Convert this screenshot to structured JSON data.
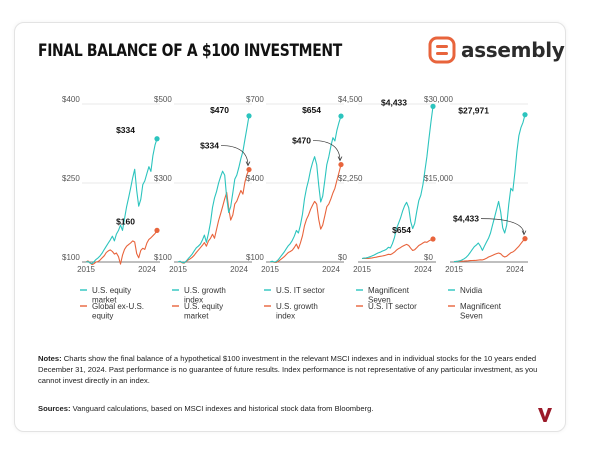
{
  "title": "FINAL BALANCE OF A $100 INVESTMENT",
  "brand": {
    "name": "assembly",
    "accent": "#E8643C",
    "teal": "#2CC4BE",
    "orange": "#E8643C"
  },
  "notes": {
    "label": "Notes:",
    "text": " Charts show the final balance of a hypothetical $100 investment in the relevant MSCI indexes and in individual stocks for the 10 years ended December 31, 2024. Past performance is no guarantee of future results. Index performance is not representative of any particular investment, as you cannot invest directly in an index."
  },
  "sources": {
    "label": "Sources:",
    "text": " Vanguard calculations, based on MSCI indexes and historical stock data from Bloomberg."
  },
  "chart_data": [
    {
      "type": "line",
      "x_start_label": "2015",
      "x_end_label": "2024",
      "ylim": [
        100,
        400
      ],
      "yticks": [
        {
          "v": 400,
          "label": "$400"
        },
        {
          "v": 250,
          "label": "$250"
        },
        {
          "v": 100,
          "label": "$100"
        }
      ],
      "series": [
        {
          "name": "U.S. equity market",
          "color": "#2CC4BE",
          "final": 334,
          "final_label": "$334",
          "values": [
            100,
            101,
            98,
            97,
            101,
            105,
            108,
            112,
            117,
            124,
            130,
            136,
            142,
            149,
            140,
            153,
            160,
            170,
            160,
            182,
            205,
            222,
            240,
            260,
            276,
            236,
            206,
            219,
            247,
            254,
            268,
            281,
            272,
            302,
            322,
            334
          ]
        },
        {
          "name": "Global ex-U.S. equity",
          "color": "#E8643C",
          "final": 160,
          "final_label": "$160",
          "values": [
            100,
            102,
            98,
            95,
            97,
            100,
            101,
            104,
            108,
            112,
            118,
            121,
            123,
            120,
            115,
            117,
            110,
            96,
            113,
            124,
            130,
            133,
            136,
            140,
            138,
            116,
            108,
            122,
            126,
            124,
            136,
            143,
            146,
            150,
            154,
            160
          ]
        }
      ]
    },
    {
      "type": "line",
      "x_start_label": "2015",
      "x_end_label": "2024",
      "ylim": [
        100,
        500
      ],
      "yticks": [
        {
          "v": 500,
          "label": "$500"
        },
        {
          "v": 300,
          "label": "$300"
        },
        {
          "v": 100,
          "label": "$100"
        }
      ],
      "series": [
        {
          "name": "U.S. growth index",
          "color": "#2CC4BE",
          "final": 470,
          "final_label": "$470",
          "values": [
            100,
            102,
            99,
            98,
            102,
            108,
            114,
            120,
            128,
            136,
            140,
            145,
            155,
            168,
            150,
            172,
            200,
            238,
            262,
            278,
            300,
            316,
            330,
            320,
            262,
            225,
            240,
            275,
            310,
            320,
            340,
            362,
            380,
            410,
            440,
            470
          ]
        },
        {
          "name": "U.S. equity market",
          "color": "#E8643C",
          "final": 334,
          "final_label": "$334",
          "values": [
            100,
            101,
            98,
            97,
            101,
            105,
            108,
            112,
            117,
            124,
            130,
            136,
            142,
            149,
            140,
            153,
            160,
            170,
            160,
            182,
            205,
            222,
            240,
            260,
            276,
            236,
            206,
            219,
            247,
            254,
            268,
            281,
            272,
            302,
            322,
            334
          ]
        }
      ]
    },
    {
      "type": "line",
      "x_start_label": "2015",
      "x_end_label": "2024",
      "ylim": [
        100,
        700
      ],
      "yticks": [
        {
          "v": 700,
          "label": "$700"
        },
        {
          "v": 400,
          "label": "$400"
        },
        {
          "v": 100,
          "label": "$100"
        }
      ],
      "series": [
        {
          "name": "U.S. IT sector",
          "color": "#2CC4BE",
          "final": 654,
          "final_label": "$654",
          "values": [
            100,
            103,
            100,
            101,
            108,
            118,
            128,
            138,
            150,
            162,
            170,
            182,
            198,
            220,
            210,
            240,
            282,
            340,
            380,
            410,
            450,
            478,
            500,
            470,
            392,
            328,
            350,
            410,
            470,
            500,
            540,
            572,
            560,
            600,
            630,
            654
          ]
        },
        {
          "name": "U.S. growth index",
          "color": "#E8643C",
          "final": 470,
          "final_label": "$470",
          "values": [
            100,
            102,
            99,
            98,
            102,
            108,
            114,
            120,
            128,
            136,
            140,
            145,
            155,
            168,
            150,
            172,
            200,
            238,
            262,
            278,
            300,
            316,
            330,
            320,
            262,
            225,
            240,
            275,
            310,
            320,
            340,
            362,
            380,
            410,
            440,
            470
          ]
        }
      ]
    },
    {
      "type": "line",
      "x_start_label": "2015",
      "x_end_label": "2024",
      "ylim": [
        0,
        4500
      ],
      "yticks": [
        {
          "v": 4500,
          "label": "$4,500"
        },
        {
          "v": 2250,
          "label": "$2,250"
        },
        {
          "v": 0,
          "label": "$0"
        }
      ],
      "series": [
        {
          "name": "Magnificent Seven",
          "color": "#2CC4BE",
          "final": 4433,
          "final_label": "$4,433",
          "values": [
            100,
            110,
            118,
            130,
            150,
            175,
            200,
            230,
            260,
            280,
            310,
            330,
            360,
            420,
            400,
            520,
            700,
            950,
            1100,
            1250,
            1450,
            1600,
            1700,
            1550,
            1150,
            950,
            1100,
            1450,
            1750,
            1900,
            2200,
            2600,
            3000,
            3500,
            4000,
            4433
          ]
        },
        {
          "name": "U.S. IT sector",
          "color": "#E8643C",
          "final": 654,
          "final_label": "$654",
          "values": [
            100,
            103,
            100,
            101,
            108,
            118,
            128,
            138,
            150,
            162,
            170,
            182,
            198,
            220,
            210,
            240,
            282,
            340,
            380,
            410,
            450,
            478,
            500,
            470,
            392,
            328,
            350,
            410,
            470,
            500,
            540,
            572,
            560,
            600,
            630,
            654
          ]
        }
      ]
    },
    {
      "type": "line",
      "x_start_label": "2015",
      "x_end_label": "2024",
      "ylim": [
        0,
        30000
      ],
      "yticks": [
        {
          "v": 30000,
          "label": "$30,000"
        },
        {
          "v": 15000,
          "label": "$15,000"
        },
        {
          "v": 0,
          "label": "$0"
        }
      ],
      "series": [
        {
          "name": "Nvidia",
          "color": "#2CC4BE",
          "final": 27971,
          "final_label": "$27,971",
          "values": [
            100,
            120,
            150,
            250,
            400,
            600,
            900,
            1300,
            1800,
            2400,
            2900,
            3200,
            3600,
            3000,
            2200,
            3000,
            3800,
            4500,
            5500,
            7000,
            8500,
            10000,
            11500,
            9500,
            6500,
            5500,
            7000,
            11000,
            14000,
            13500,
            17000,
            21000,
            24000,
            25500,
            26500,
            27971
          ]
        },
        {
          "name": "Magnificent Seven",
          "color": "#E8643C",
          "final": 4433,
          "final_label": "$4,433",
          "values": [
            100,
            110,
            118,
            130,
            150,
            175,
            200,
            230,
            260,
            280,
            310,
            330,
            360,
            420,
            400,
            520,
            700,
            950,
            1100,
            1250,
            1450,
            1600,
            1700,
            1550,
            1150,
            950,
            1100,
            1450,
            1750,
            1900,
            2200,
            2600,
            3000,
            3500,
            4000,
            4433
          ]
        }
      ]
    }
  ]
}
